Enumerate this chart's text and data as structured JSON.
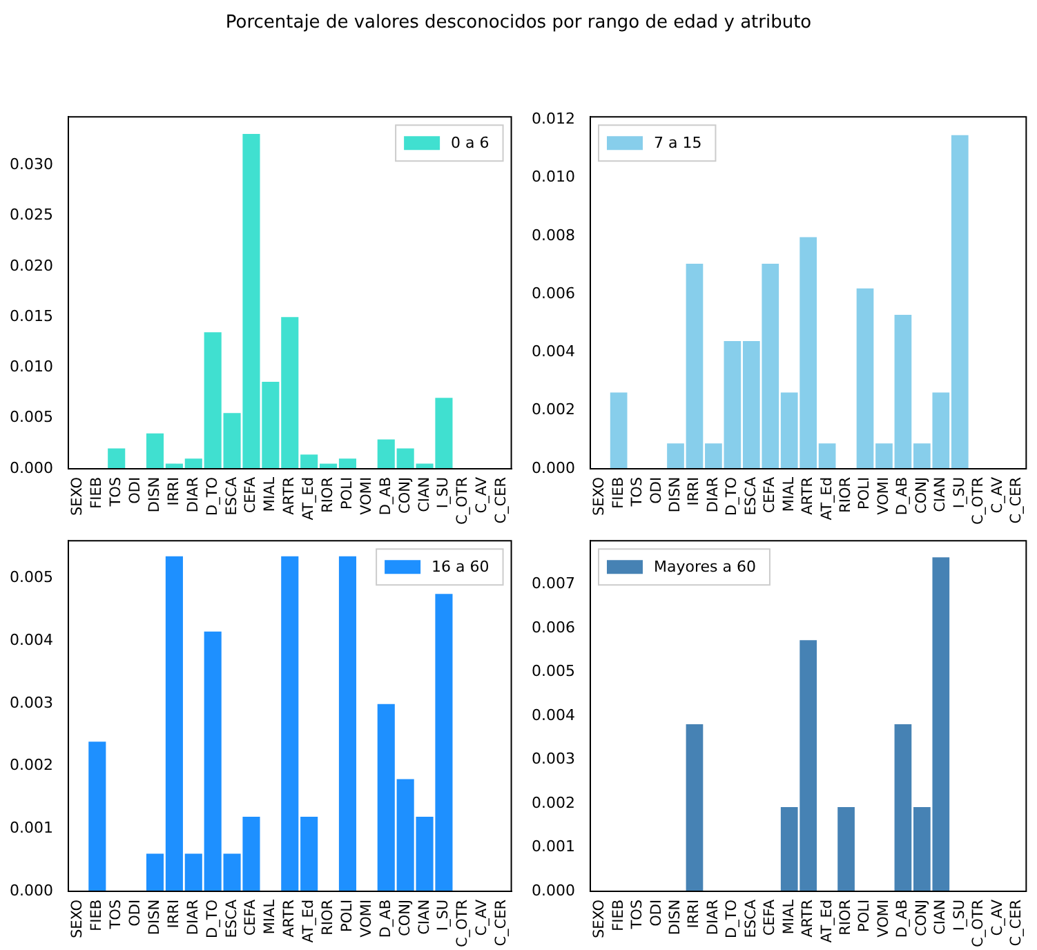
{
  "chart_data": [
    {
      "type": "bar",
      "title": "Porcentaje de valores desconocidos por rango de edad y atributo",
      "categories": [
        "SEXO",
        "FIEB",
        "TOS",
        "ODI",
        "DISN",
        "IRRI",
        "DIAR",
        "D_TO",
        "ESCA",
        "CEFA",
        "MIAL",
        "ARTR",
        "AT_Ed",
        "RIOR",
        "POLI",
        "VOMI",
        "D_AB",
        "CONJ",
        "CIAN",
        "I_SU",
        "C_OTR",
        "C_AV",
        "C_CER"
      ],
      "series": [
        {
          "name": "0 a 6",
          "color": "#40e0d0",
          "values": [
            0,
            0,
            0.002,
            0,
            0.0035,
            0.0005,
            0.001,
            0.0135,
            0.0055,
            0.0331,
            0.0086,
            0.015,
            0.0014,
            0.0005,
            0.001,
            0,
            0.0029,
            0.002,
            0.0005,
            0.007,
            0,
            0,
            0
          ]
        }
      ],
      "ylim": [
        0,
        0.0348
      ],
      "yticks": [
        {
          "value": 0,
          "label": "0.000"
        },
        {
          "value": 0.005,
          "label": "0.005"
        },
        {
          "value": 0.01,
          "label": "0.010"
        },
        {
          "value": 0.015,
          "label": "0.015"
        },
        {
          "value": 0.02,
          "label": "0.020"
        },
        {
          "value": 0.025,
          "label": "0.025"
        },
        {
          "value": 0.03,
          "label": "0.030"
        }
      ],
      "legend": "top right",
      "grid": false
    },
    {
      "type": "bar",
      "categories": [
        "SEXO",
        "FIEB",
        "TOS",
        "ODI",
        "DISN",
        "IRRI",
        "DIAR",
        "D_TO",
        "ESCA",
        "CEFA",
        "MIAL",
        "ARTR",
        "AT_Ed",
        "RIOR",
        "POLI",
        "VOMI",
        "D_AB",
        "CONJ",
        "CIAN",
        "I_SU",
        "C_OTR",
        "C_AV",
        "C_CER"
      ],
      "series": [
        {
          "name": "7 a 15",
          "color": "#87ceeb",
          "values": [
            0,
            0.00262,
            0,
            0,
            0.00087,
            0.00705,
            0.00087,
            0.00439,
            0.00439,
            0.00705,
            0.00262,
            0.00796,
            0.00087,
            0,
            0.0062,
            0.00087,
            0.00529,
            0.00087,
            0.00262,
            0.01147,
            0,
            0,
            0
          ]
        }
      ],
      "ylim": [
        0,
        0.0121
      ],
      "yticks": [
        {
          "value": 0,
          "label": "0.000"
        },
        {
          "value": 0.002,
          "label": "0.002"
        },
        {
          "value": 0.004,
          "label": "0.004"
        },
        {
          "value": 0.006,
          "label": "0.006"
        },
        {
          "value": 0.008,
          "label": "0.008"
        },
        {
          "value": 0.01,
          "label": "0.010"
        },
        {
          "value": 0.012,
          "label": "0.012"
        }
      ],
      "legend": "top left",
      "grid": false
    },
    {
      "type": "bar",
      "categories": [
        "SEXO",
        "FIEB",
        "TOS",
        "ODI",
        "DISN",
        "IRRI",
        "DIAR",
        "D_TO",
        "ESCA",
        "CEFA",
        "MIAL",
        "ARTR",
        "AT_Ed",
        "RIOR",
        "POLI",
        "VOMI",
        "D_AB",
        "CONJ",
        "CIAN",
        "I_SU",
        "C_OTR",
        "C_AV",
        "C_CER"
      ],
      "series": [
        {
          "name": "16 a 60",
          "color": "#1e90ff",
          "values": [
            0,
            0.00239,
            0,
            0,
            0.0006,
            0.00535,
            0.0006,
            0.00415,
            0.0006,
            0.00119,
            0,
            0.00535,
            0.00119,
            0,
            0.00535,
            0,
            0.00299,
            0.00179,
            0.00119,
            0.00475,
            0,
            0,
            0
          ]
        }
      ],
      "ylim": [
        0,
        0.0056
      ],
      "yticks": [
        {
          "value": 0,
          "label": "0.000"
        },
        {
          "value": 0.001,
          "label": "0.001"
        },
        {
          "value": 0.002,
          "label": "0.002"
        },
        {
          "value": 0.003,
          "label": "0.003"
        },
        {
          "value": 0.004,
          "label": "0.004"
        },
        {
          "value": 0.005,
          "label": "0.005"
        }
      ],
      "legend": "top right",
      "grid": false
    },
    {
      "type": "bar",
      "categories": [
        "SEXO",
        "FIEB",
        "TOS",
        "ODI",
        "DISN",
        "IRRI",
        "DIAR",
        "D_TO",
        "ESCA",
        "CEFA",
        "MIAL",
        "ARTR",
        "AT_Ed",
        "RIOR",
        "POLI",
        "VOMI",
        "D_AB",
        "CONJ",
        "CIAN",
        "I_SU",
        "C_OTR",
        "C_AV",
        "C_CER"
      ],
      "series": [
        {
          "name": "Mayores a 60",
          "color": "#4682b4",
          "values": [
            0,
            0,
            0,
            0,
            0,
            0.00381,
            0,
            0,
            0,
            0,
            0.00192,
            0.00573,
            0,
            0.00192,
            0,
            0,
            0.00381,
            0.00192,
            0.00762,
            0,
            0,
            0,
            0
          ]
        }
      ],
      "ylim": [
        0,
        0.008
      ],
      "yticks": [
        {
          "value": 0,
          "label": "0.000"
        },
        {
          "value": 0.001,
          "label": "0.001"
        },
        {
          "value": 0.002,
          "label": "0.002"
        },
        {
          "value": 0.003,
          "label": "0.003"
        },
        {
          "value": 0.004,
          "label": "0.004"
        },
        {
          "value": 0.005,
          "label": "0.005"
        },
        {
          "value": 0.006,
          "label": "0.006"
        },
        {
          "value": 0.007,
          "label": "0.007"
        }
      ],
      "legend": "top left",
      "grid": false
    }
  ]
}
